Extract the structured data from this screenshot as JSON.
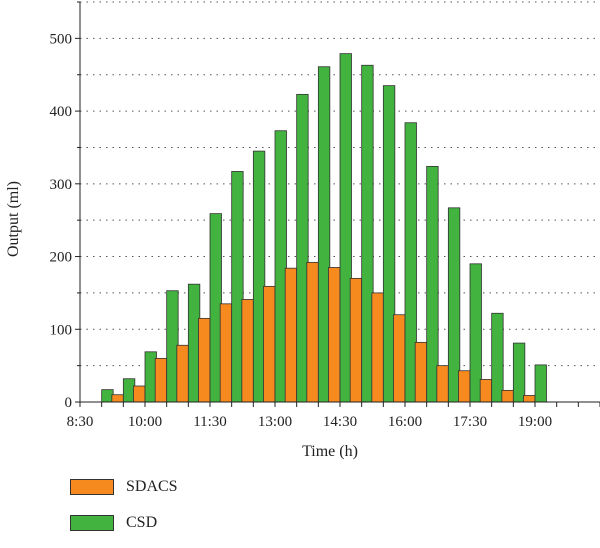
{
  "chart_data": {
    "type": "bar",
    "xlabel": "Time (h)",
    "ylabel": "Output (ml)",
    "ylim": [
      0,
      550
    ],
    "yticks": [
      0,
      100,
      200,
      300,
      400,
      500
    ],
    "xlim": [
      "8:30",
      "20:30"
    ],
    "xticks": [
      "8:30",
      "10:00",
      "11:30",
      "13:00",
      "14:30",
      "16:00",
      "17:30",
      "19:00"
    ],
    "grid": true,
    "legend_position": "bottom",
    "categories": [
      "9:00",
      "9:30",
      "10:00",
      "10:30",
      "11:00",
      "11:30",
      "12:00",
      "12:30",
      "13:00",
      "13:30",
      "14:00",
      "14:30",
      "15:00",
      "15:30",
      "16:00",
      "16:30",
      "17:00",
      "17:30",
      "18:00",
      "18:30",
      "19:00"
    ],
    "series": [
      {
        "name": "SDACS",
        "color": "#f68a1e",
        "values": [
          0,
          10,
          22,
          60,
          78,
          115,
          135,
          141,
          159,
          184,
          192,
          185,
          170,
          150,
          120,
          82,
          50,
          43,
          31,
          16,
          9
        ]
      },
      {
        "name": "CSD",
        "color": "#41b33e",
        "values": [
          17,
          32,
          69,
          153,
          162,
          259,
          317,
          345,
          373,
          423,
          461,
          479,
          463,
          435,
          384,
          324,
          267,
          190,
          122,
          81,
          51
        ]
      }
    ]
  }
}
